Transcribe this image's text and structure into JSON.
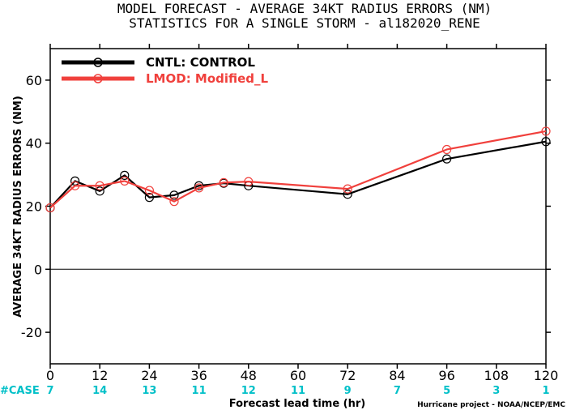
{
  "title_line1": "MODEL FORECAST - AVERAGE 34KT RADIUS ERRORS (NM)",
  "title_line2": "STATISTICS FOR A SINGLE STORM - al182020_RENE",
  "case_label": "#CASE",
  "credit": "Hurricane project - NOAA/NCEP/EMC",
  "chart_data": {
    "type": "line",
    "title": "MODEL FORECAST - AVERAGE 34KT RADIUS ERRORS (NM)",
    "subtitle": "STATISTICS FOR A SINGLE STORM - al182020_RENE",
    "xlabel": "Forecast lead time (hr)",
    "ylabel": "AVERAGE 34KT RADIUS ERRORS (NM)",
    "xlim": [
      0,
      120
    ],
    "ylim": [
      -30,
      70
    ],
    "x_ticks": [
      0,
      12,
      24,
      36,
      48,
      60,
      72,
      84,
      96,
      108,
      120
    ],
    "y_ticks": [
      -20,
      0,
      20,
      40,
      60
    ],
    "case_counts": [
      "7",
      "14",
      "13",
      "11",
      "12",
      "11",
      "9",
      "7",
      "5",
      "3",
      "1"
    ],
    "zero_line": true,
    "legend_position": "top-left",
    "series": [
      {
        "name": "CNTL: CONTROL",
        "color": "#000000",
        "x": [
          0,
          6,
          12,
          18,
          24,
          30,
          36,
          42,
          48,
          72,
          96,
          120
        ],
        "y": [
          19.5,
          28.0,
          24.8,
          29.8,
          22.8,
          23.5,
          26.5,
          27.3,
          26.5,
          23.8,
          35.0,
          40.5
        ]
      },
      {
        "name": "LMOD: Modified_L",
        "color": "#f0403c",
        "x": [
          0,
          6,
          12,
          18,
          24,
          30,
          36,
          42,
          48,
          72,
          96,
          120
        ],
        "y": [
          19.5,
          26.5,
          26.5,
          28.0,
          25.0,
          21.5,
          25.8,
          27.5,
          27.8,
          25.5,
          38.0,
          43.8
        ]
      }
    ]
  }
}
